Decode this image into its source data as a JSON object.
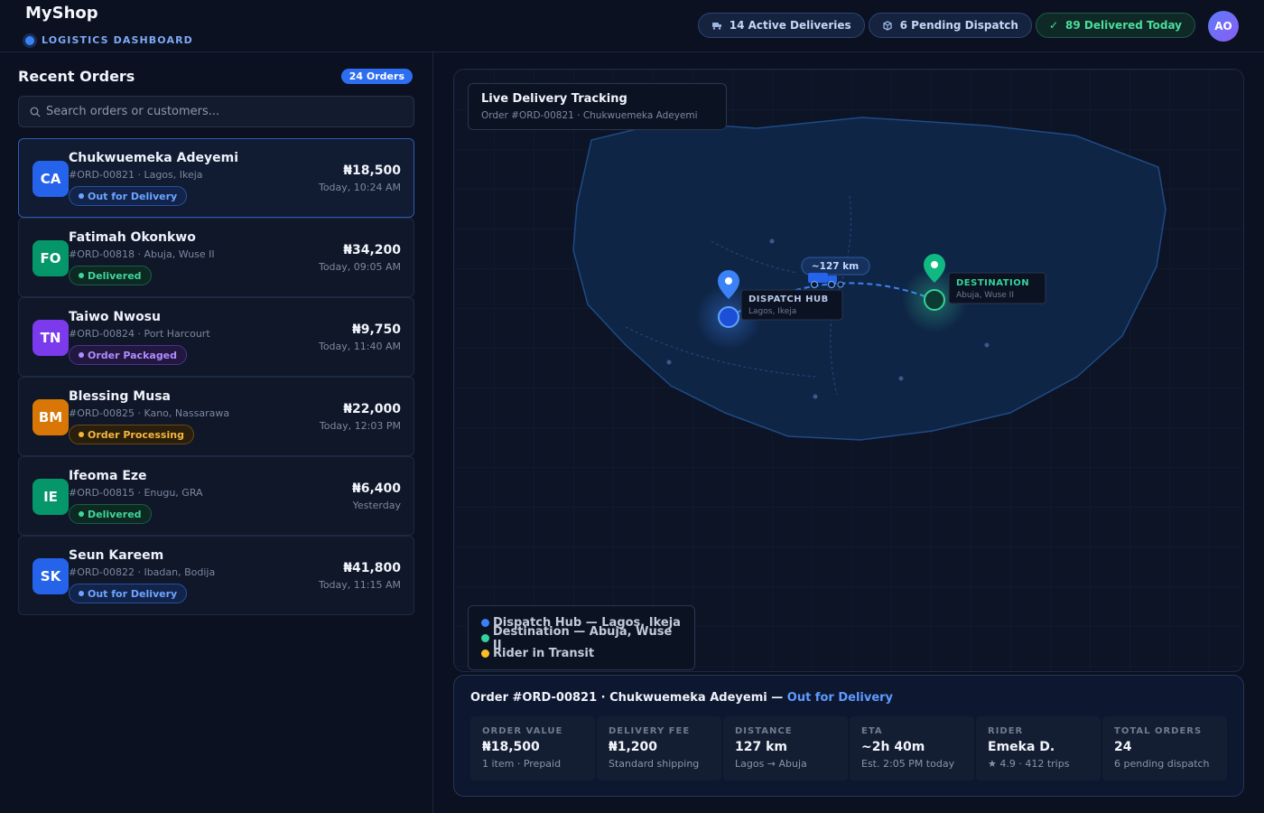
{
  "header": {
    "brand": "MyShop",
    "subtitle": "LOGISTICS DASHBOARD",
    "stats": [
      {
        "icon": "truck-icon",
        "label": "14 Active Deliveries"
      },
      {
        "icon": "package-icon",
        "label": "6 Pending Dispatch"
      },
      {
        "icon": "check-icon",
        "label": "89 Delivered Today"
      }
    ],
    "user_initials": "AO"
  },
  "sidebar": {
    "title": "Recent Orders",
    "count": "24 Orders",
    "search_placeholder": "Search orders or customers...",
    "orders": [
      {
        "initials": "CA",
        "name": "Chukwuemeka Adeyemi",
        "id": "#ORD-00821",
        "location": "Lagos, Ikeja",
        "status": "Out for Delivery",
        "amount": "₦18,500",
        "time": "Today, 10:24 AM",
        "avatar_color": "#2563eb"
      },
      {
        "initials": "FO",
        "name": "Fatimah Okonkwo",
        "id": "#ORD-00818",
        "location": "Abuja, Wuse II",
        "status": "Delivered",
        "amount": "₦34,200",
        "time": "Today, 09:05 AM",
        "avatar_color": "#059669"
      },
      {
        "initials": "TN",
        "name": "Taiwo Nwosu",
        "id": "#ORD-00824",
        "location": "Port Harcourt",
        "status": "Order Packaged",
        "amount": "₦9,750",
        "time": "Today, 11:40 AM",
        "avatar_color": "#7c3aed"
      },
      {
        "initials": "BM",
        "name": "Blessing Musa",
        "id": "#ORD-00825",
        "location": "Kano, Nassarawa",
        "status": "Order Processing",
        "amount": "₦22,000",
        "time": "Today, 12:03 PM",
        "avatar_color": "#d97706"
      },
      {
        "initials": "IE",
        "name": "Ifeoma Eze",
        "id": "#ORD-00815",
        "location": "Enugu, GRA",
        "status": "Delivered",
        "amount": "₦6,400",
        "time": "Yesterday",
        "avatar_color": "#059669"
      },
      {
        "initials": "SK",
        "name": "Seun Kareem",
        "id": "#ORD-00822",
        "location": "Ibadan, Bodija",
        "status": "Out for Delivery",
        "amount": "₦41,800",
        "time": "Today, 11:15 AM",
        "avatar_color": "#2563eb"
      }
    ]
  },
  "map": {
    "title": "Live Delivery Tracking",
    "subtitle": "Order #ORD-00821 · Chukwuemeka Adeyemi",
    "distance_label": "~127 km",
    "hub_label": "DISPATCH HUB",
    "hub_sub": "Lagos, Ikeja",
    "dest_label": "DESTINATION",
    "dest_sub": "Abuja, Wuse II",
    "legend": [
      {
        "color": "#3b82f6",
        "label": "Dispatch Hub — Lagos, Ikeja"
      },
      {
        "color": "#34d399",
        "label": "Destination — Abuja, Wuse II"
      },
      {
        "color": "#fbbf24",
        "label": "Rider in Transit"
      }
    ]
  },
  "detail": {
    "order": "Order #ORD-00821",
    "customer": "Chukwuemeka Adeyemi",
    "status": "Out for Delivery",
    "tiles": [
      {
        "label": "ORDER VALUE",
        "value": "₦18,500",
        "sub": "1 item · Prepaid"
      },
      {
        "label": "DELIVERY FEE",
        "value": "₦1,200",
        "sub": "Standard shipping"
      },
      {
        "label": "DISTANCE",
        "value": "127 km",
        "sub": "Lagos → Abuja"
      },
      {
        "label": "ETA",
        "value": "~2h 40m",
        "sub": "Est. 2:05 PM today"
      },
      {
        "label": "RIDER",
        "value": "Emeka D.",
        "sub": "★ 4.9 · 412 trips"
      },
      {
        "label": "TOTAL ORDERS",
        "value": "24",
        "sub": "6 pending dispatch"
      }
    ]
  }
}
